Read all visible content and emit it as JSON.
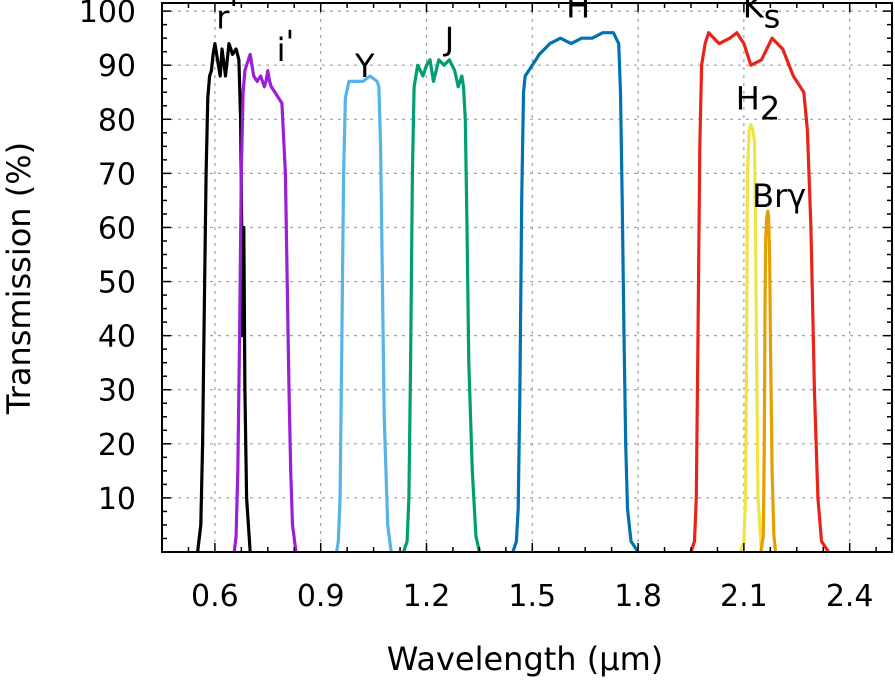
{
  "chart_data": {
    "type": "line",
    "xlabel": "Wavelength (μm)",
    "ylabel": "Transmission (%)",
    "xlim": [
      0.45,
      2.52
    ],
    "ylim": [
      0,
      101.5
    ],
    "xticks": [
      0.6,
      0.9,
      1.2,
      1.5,
      1.8,
      2.1,
      2.4
    ],
    "xtick_labels": [
      "0.6",
      "0.9",
      "1.2",
      "1.5",
      "1.8",
      "2.1",
      "2.4"
    ],
    "yticks": [
      10,
      20,
      30,
      40,
      50,
      60,
      70,
      80,
      90,
      100
    ],
    "ytick_labels": [
      "10",
      "20",
      "30",
      "40",
      "50",
      "60",
      "70",
      "80",
      "90",
      "100"
    ],
    "grid": true,
    "series": [
      {
        "name": "r'",
        "color": "#000000",
        "label_main": "r",
        "label_sub": "",
        "label_sup": "'",
        "label_x": 0.635,
        "label_y": 99,
        "x": [
          0.551,
          0.56,
          0.565,
          0.57,
          0.575,
          0.58,
          0.585,
          0.59,
          0.595,
          0.6,
          0.61,
          0.615,
          0.62,
          0.63,
          0.64,
          0.645,
          0.65,
          0.66,
          0.668,
          0.673,
          0.676,
          0.678,
          0.682,
          0.685,
          0.69,
          0.7
        ],
        "y": [
          0,
          5,
          20,
          45,
          70,
          84,
          88,
          89,
          92,
          94,
          90,
          88,
          93,
          88,
          94,
          93,
          92,
          93,
          91,
          80,
          60,
          40,
          60,
          30,
          10,
          0
        ]
      },
      {
        "name": "i'",
        "color": "#9b1fd6",
        "label_main": "i",
        "label_sub": "",
        "label_sup": "'",
        "label_x": 0.8,
        "label_y": 93,
        "x": [
          0.655,
          0.66,
          0.665,
          0.67,
          0.675,
          0.68,
          0.685,
          0.69,
          0.7,
          0.71,
          0.72,
          0.73,
          0.74,
          0.745,
          0.75,
          0.755,
          0.76,
          0.77,
          0.78,
          0.79,
          0.8,
          0.805,
          0.81,
          0.815,
          0.82,
          0.83
        ],
        "y": [
          0,
          3,
          15,
          40,
          70,
          85,
          89,
          90,
          92,
          88,
          87,
          88,
          86,
          87,
          89,
          87,
          86,
          85,
          84,
          83,
          70,
          50,
          30,
          15,
          5,
          0
        ]
      },
      {
        "name": "Y",
        "color": "#56b4e9",
        "label_main": "Y",
        "label_sub": "",
        "label_sup": "",
        "label_x": 1.025,
        "label_y": 90,
        "x": [
          0.945,
          0.95,
          0.955,
          0.96,
          0.965,
          0.97,
          0.98,
          1.0,
          1.02,
          1.04,
          1.06,
          1.065,
          1.07,
          1.075,
          1.08,
          1.09,
          1.1
        ],
        "y": [
          0,
          2,
          10,
          40,
          70,
          84,
          87,
          87,
          87,
          88,
          87,
          86,
          75,
          50,
          25,
          5,
          0
        ]
      },
      {
        "name": "J",
        "color": "#009e73",
        "label_main": "J",
        "label_sub": "",
        "label_sup": "",
        "label_x": 1.265,
        "label_y": 95,
        "x": [
          1.135,
          1.145,
          1.15,
          1.155,
          1.16,
          1.165,
          1.175,
          1.19,
          1.2,
          1.21,
          1.22,
          1.235,
          1.25,
          1.265,
          1.28,
          1.29,
          1.3,
          1.305,
          1.31,
          1.315,
          1.32,
          1.33,
          1.34,
          1.35
        ],
        "y": [
          0,
          2,
          10,
          35,
          70,
          86,
          90,
          88,
          90,
          91,
          87,
          91,
          90,
          91,
          89,
          86,
          88,
          86,
          80,
          60,
          35,
          15,
          3,
          0
        ]
      },
      {
        "name": "H",
        "color": "#0072b2",
        "label_main": "H",
        "label_sub": "",
        "label_sup": "",
        "label_x": 1.63,
        "label_y": 101,
        "x": [
          1.445,
          1.455,
          1.46,
          1.465,
          1.47,
          1.475,
          1.48,
          1.5,
          1.52,
          1.55,
          1.58,
          1.61,
          1.64,
          1.67,
          1.7,
          1.73,
          1.745,
          1.75,
          1.755,
          1.76,
          1.765,
          1.77,
          1.78,
          1.8
        ],
        "y": [
          0,
          2,
          8,
          30,
          65,
          85,
          88,
          90,
          92,
          94,
          95,
          94,
          95,
          95,
          96,
          96,
          94,
          85,
          65,
          40,
          20,
          8,
          2,
          0
        ]
      },
      {
        "name": "Ks",
        "color": "#e8231a",
        "label_main": "K",
        "label_sub": "s",
        "label_sup": "",
        "label_x": 2.15,
        "label_y": 101,
        "x": [
          1.95,
          1.96,
          1.965,
          1.97,
          1.975,
          1.98,
          1.99,
          2.0,
          2.03,
          2.06,
          2.08,
          2.1,
          2.12,
          2.15,
          2.18,
          2.21,
          2.24,
          2.27,
          2.28,
          2.29,
          2.295,
          2.3,
          2.31,
          2.32,
          2.34
        ],
        "y": [
          0,
          2,
          10,
          40,
          75,
          90,
          94,
          96,
          94,
          95,
          96,
          94,
          90,
          91,
          95,
          93,
          88,
          85,
          78,
          60,
          45,
          30,
          10,
          2,
          0
        ]
      },
      {
        "name": "H2",
        "color": "#f0e442",
        "label_main": "H",
        "label_sub": "2",
        "label_sup": "",
        "label_x": 2.14,
        "label_y": 84,
        "x": [
          2.09,
          2.1,
          2.105,
          2.108,
          2.11,
          2.115,
          2.12,
          2.125,
          2.13,
          2.133,
          2.137,
          2.14,
          2.15
        ],
        "y": [
          0,
          2,
          10,
          40,
          70,
          78,
          79,
          78,
          76,
          60,
          30,
          10,
          0
        ]
      },
      {
        "name": "Brγ",
        "color": "#e69f00",
        "label_main": "Brγ",
        "label_sub": "",
        "label_sup": "",
        "label_x": 2.2,
        "label_y": 66,
        "x": [
          2.148,
          2.155,
          2.158,
          2.16,
          2.162,
          2.165,
          2.168,
          2.17,
          2.173,
          2.176,
          2.18,
          2.185,
          2.19
        ],
        "y": [
          0,
          3,
          20,
          45,
          58,
          62,
          63,
          62,
          55,
          35,
          15,
          3,
          0
        ]
      }
    ]
  }
}
